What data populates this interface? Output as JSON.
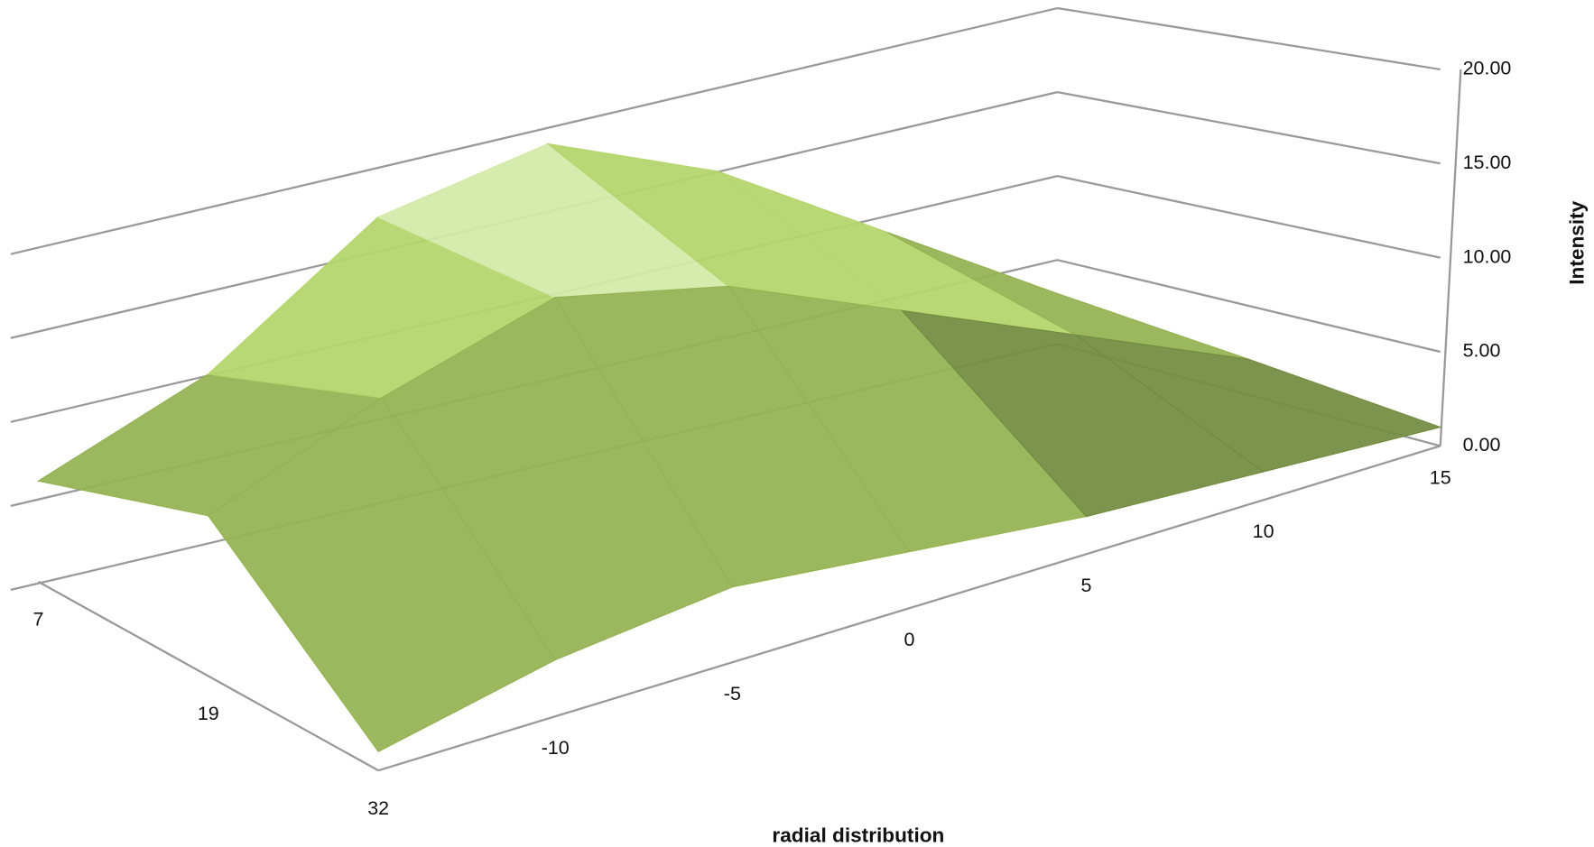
{
  "chart_data": {
    "type": "surface",
    "x_label": "radial distribution",
    "y_label": "Intensity",
    "categories": [
      null,
      -10,
      -5,
      0,
      5,
      10,
      15
    ],
    "series": [
      {
        "name": "7",
        "values": [
          6,
          10,
          17,
          19,
          15,
          9,
          3
        ]
      },
      {
        "name": "19",
        "values": [
          9,
          13,
          16,
          14,
          10,
          6,
          2
        ]
      },
      {
        "name": "32",
        "values": [
          1,
          3,
          4,
          3,
          2,
          1.5,
          1
        ]
      }
    ],
    "ylim": [
      0,
      20
    ],
    "yticks": [
      {
        "value": 0,
        "label": "0.00"
      },
      {
        "value": 5,
        "label": "5.00"
      },
      {
        "value": 10,
        "label": "10.00"
      },
      {
        "value": 15,
        "label": "15.00"
      },
      {
        "value": 20,
        "label": "20.00"
      }
    ],
    "band_colors": [
      "#728c3f",
      "#93b352",
      "#b3d56c",
      "#d3eaa8"
    ],
    "grid": true
  }
}
